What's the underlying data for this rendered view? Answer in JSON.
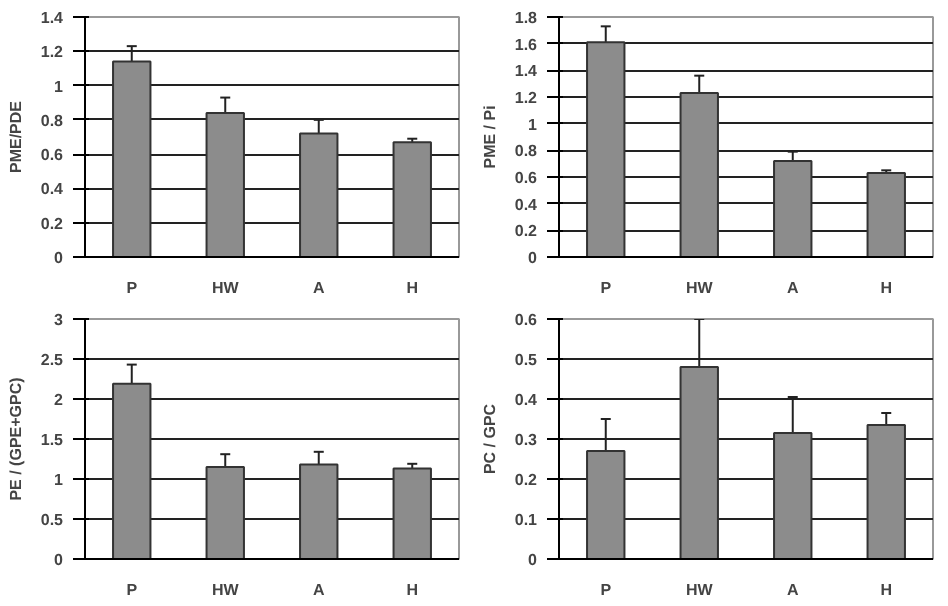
{
  "chart_data": [
    {
      "type": "bar",
      "categories": [
        "P",
        "HW",
        "A",
        "H"
      ],
      "values": [
        1.14,
        0.84,
        0.72,
        0.67
      ],
      "errors": [
        0.09,
        0.09,
        0.08,
        0.02
      ],
      "color": "#8c8c8c",
      "ylabel": "PME/PDE",
      "ylim": [
        0,
        1.4
      ],
      "yticks": [
        0,
        0.2,
        0.4,
        0.6,
        0.8,
        1,
        1.2,
        1.4
      ],
      "grid": "y"
    },
    {
      "type": "bar",
      "categories": [
        "P",
        "HW",
        "A",
        "H"
      ],
      "values": [
        1.61,
        1.23,
        0.72,
        0.63
      ],
      "errors": [
        0.12,
        0.13,
        0.07,
        0.02
      ],
      "color": "#8c8c8c",
      "ylabel": "PME / Pi",
      "ylim": [
        0,
        1.8
      ],
      "yticks": [
        0,
        0.2,
        0.4,
        0.6,
        0.8,
        1,
        1.2,
        1.4,
        1.6,
        1.8
      ],
      "grid": "y"
    },
    {
      "type": "bar",
      "categories": [
        "P",
        "HW",
        "A",
        "H"
      ],
      "values": [
        2.19,
        1.15,
        1.18,
        1.13
      ],
      "errors": [
        0.24,
        0.16,
        0.16,
        0.06
      ],
      "color": "#8c8c8c",
      "ylabel": "PE / (GPE+GPC)",
      "ylim": [
        0,
        3
      ],
      "yticks": [
        0,
        0.5,
        1,
        1.5,
        2,
        2.5,
        3
      ],
      "grid": "y"
    },
    {
      "type": "bar",
      "categories": [
        "P",
        "HW",
        "A",
        "H"
      ],
      "values": [
        0.27,
        0.48,
        0.315,
        0.335
      ],
      "errors": [
        0.08,
        0.12,
        0.09,
        0.03
      ],
      "color": "#8c8c8c",
      "ylabel": "PC / GPC",
      "ylim": [
        0,
        0.6
      ],
      "yticks": [
        0,
        0.1,
        0.2,
        0.3,
        0.4,
        0.5,
        0.6
      ],
      "grid": "y"
    }
  ]
}
